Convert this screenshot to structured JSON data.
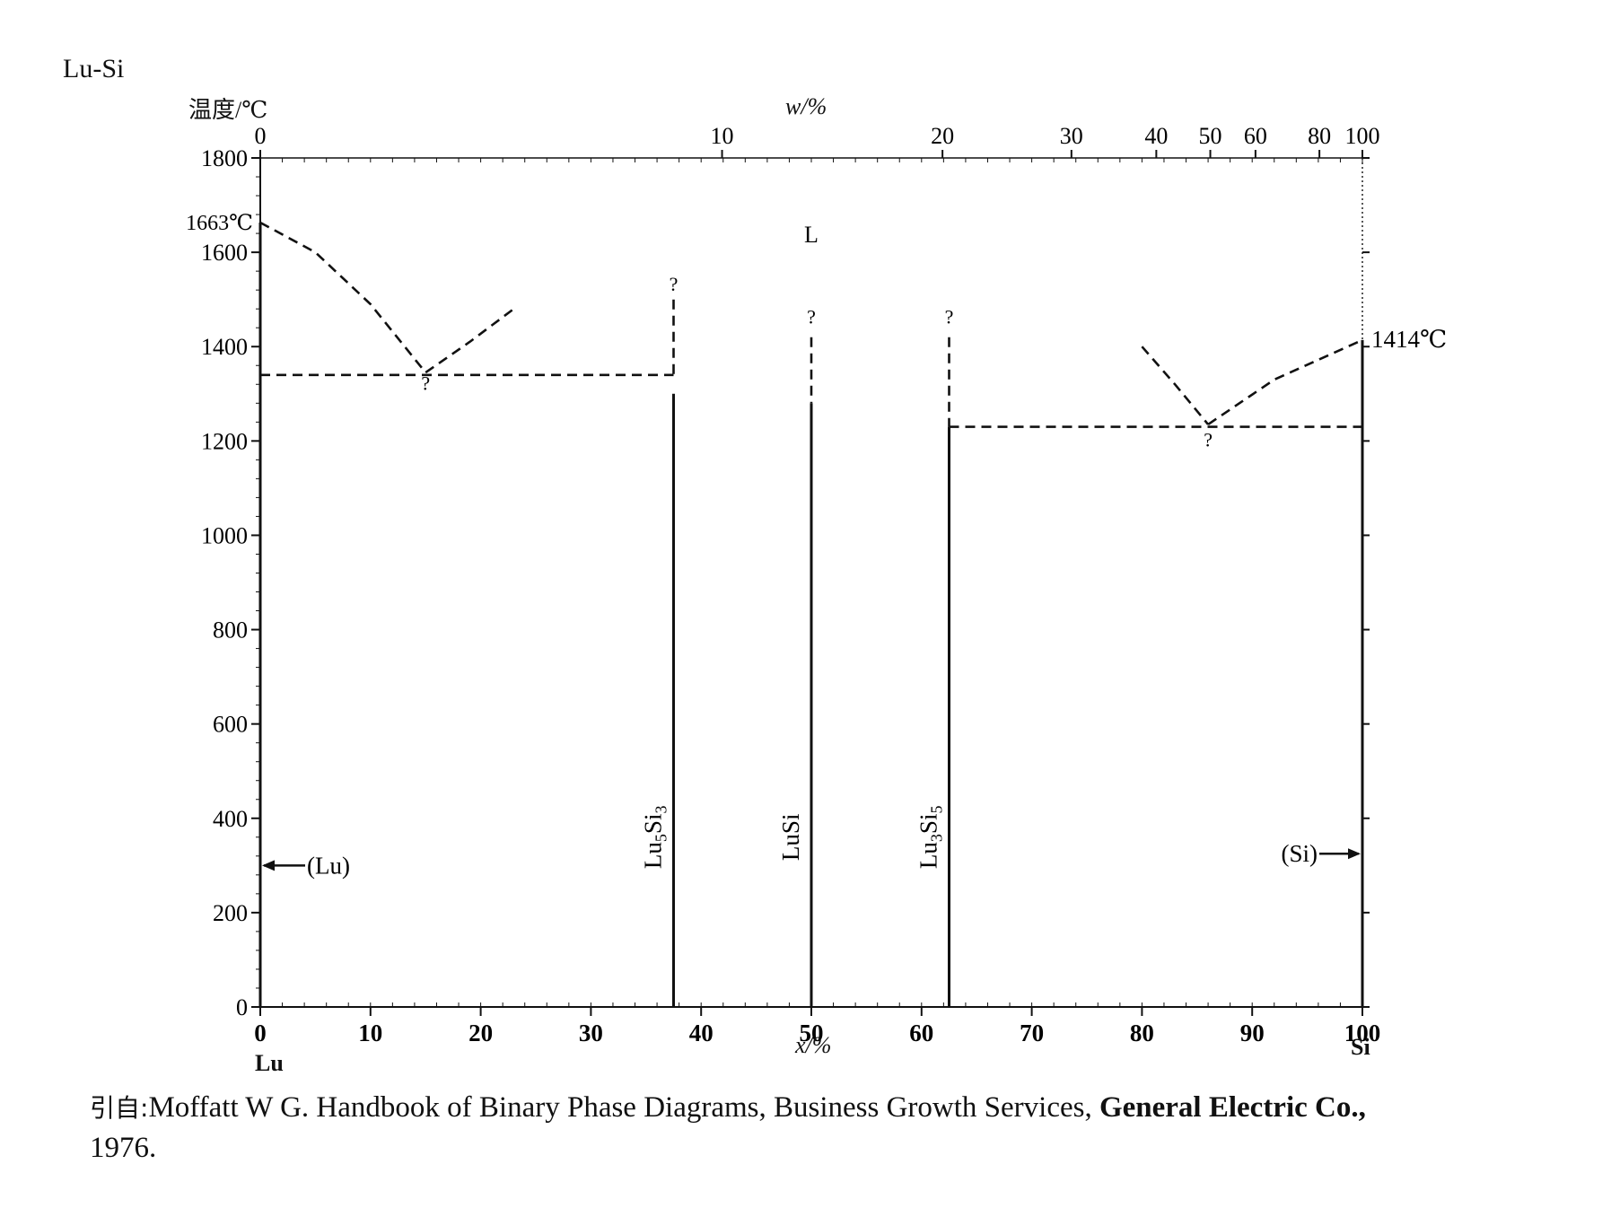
{
  "system": "Lu-Si",
  "ylabel": "温度/℃",
  "wlabel": "w/%",
  "xlabel": "x/%",
  "left_component": "Lu",
  "right_component": "Si",
  "caption": {
    "lead": "引自:",
    "text": "Moffatt W G.  Handbook of Binary Phase Diagrams, Business Growth Services, ",
    "bold": "General Electric Co.,",
    "year": "1976."
  },
  "chart_data": {
    "type": "phase-diagram",
    "title": "Lu-Si",
    "xlabel": "x/%",
    "ylabel": "温度/℃",
    "top_axis_label": "w/%",
    "xlim": [
      0,
      100
    ],
    "ylim": [
      0,
      1800
    ],
    "x_ticks": [
      0,
      10,
      20,
      30,
      40,
      50,
      60,
      70,
      80,
      90,
      100
    ],
    "y_ticks": [
      0,
      200,
      400,
      600,
      800,
      1000,
      1200,
      1400,
      1600,
      1800
    ],
    "w_ticks": [
      {
        "label": "0",
        "x": 0
      },
      {
        "label": "10",
        "x": 41.9
      },
      {
        "label": "20",
        "x": 61.9
      },
      {
        "label": "30",
        "x": 73.6
      },
      {
        "label": "40",
        "x": 81.3
      },
      {
        "label": "50",
        "x": 86.2
      },
      {
        "label": "60",
        "x": 90.3
      },
      {
        "label": "80",
        "x": 96.1
      },
      {
        "label": "100",
        "x": 100
      }
    ],
    "annotations": [
      {
        "text": "1663℃",
        "x": 0,
        "y": 1663,
        "kind": "melting-point"
      },
      {
        "text": "1414℃",
        "x": 100,
        "y": 1414,
        "kind": "melting-point"
      },
      {
        "text": "L",
        "x": 50,
        "y": 1640,
        "kind": "phase"
      },
      {
        "text": "(Lu)",
        "x": 0,
        "y": 300,
        "kind": "phase-arrow-left"
      },
      {
        "text": "(Si)",
        "x": 100,
        "y": 325,
        "kind": "phase-arrow-right"
      }
    ],
    "compounds": [
      {
        "name": "Lu5Si3",
        "base": "Lu",
        "sub1": "5",
        "mid": "Si",
        "sub2": "3",
        "x": 37.5,
        "y_top": 1520,
        "y_solid": 1300
      },
      {
        "name": "LuSi",
        "base": "LuSi",
        "sub1": "",
        "mid": "",
        "sub2": "",
        "x": 50,
        "y_top": 1440,
        "y_solid": 1280
      },
      {
        "name": "Lu3Si5",
        "base": "Lu",
        "sub1": "3",
        "mid": "Si",
        "sub2": "5",
        "x": 62.5,
        "y_top": 1440,
        "y_solid": 1230
      }
    ],
    "question_marks": [
      {
        "x": 37.5,
        "y": 1530
      },
      {
        "x": 50,
        "y": 1460
      },
      {
        "x": 62.5,
        "y": 1460
      },
      {
        "x": 15,
        "y": 1320
      },
      {
        "x": 86,
        "y": 1200
      }
    ],
    "series": [
      {
        "name": "",
        "style": "dashed",
        "points": [
          [
            0,
            1663
          ],
          [
            5,
            1600
          ],
          [
            10,
            1490
          ],
          [
            15,
            1345
          ]
        ]
      },
      {
        "name": "",
        "style": "dashed",
        "points": [
          [
            15,
            1345
          ],
          [
            19,
            1410
          ],
          [
            23,
            1480
          ]
        ]
      },
      {
        "name": "",
        "style": "dashed",
        "points": [
          [
            0,
            1340
          ],
          [
            37.5,
            1340
          ]
        ]
      },
      {
        "name": "",
        "style": "dashed",
        "points": [
          [
            37.5,
            1500
          ],
          [
            37.5,
            1340
          ]
        ]
      },
      {
        "name": "",
        "style": "dashed",
        "points": [
          [
            50,
            1420
          ],
          [
            50,
            1280
          ]
        ]
      },
      {
        "name": "",
        "style": "dashed",
        "points": [
          [
            62.5,
            1420
          ],
          [
            62.5,
            1230
          ]
        ]
      },
      {
        "name": "",
        "style": "dashed",
        "points": [
          [
            62.5,
            1230
          ],
          [
            100,
            1230
          ]
        ]
      },
      {
        "name": "",
        "style": "dashed",
        "points": [
          [
            80,
            1400
          ],
          [
            83,
            1320
          ],
          [
            86,
            1235
          ]
        ]
      },
      {
        "name": "",
        "style": "dashed",
        "points": [
          [
            86,
            1235
          ],
          [
            92,
            1330
          ],
          [
            100,
            1414
          ]
        ]
      },
      {
        "name": "",
        "style": "solid",
        "points": [
          [
            37.5,
            1300
          ],
          [
            37.5,
            0
          ]
        ]
      },
      {
        "name": "",
        "style": "solid",
        "points": [
          [
            50,
            1280
          ],
          [
            50,
            0
          ]
        ]
      },
      {
        "name": "",
        "style": "solid",
        "points": [
          [
            62.5,
            1230
          ],
          [
            62.5,
            0
          ]
        ]
      },
      {
        "name": "",
        "style": "solid",
        "points": [
          [
            0,
            1663
          ],
          [
            0,
            0
          ]
        ]
      },
      {
        "name": "",
        "style": "solid",
        "points": [
          [
            100,
            1414
          ],
          [
            100,
            0
          ]
        ]
      }
    ]
  }
}
